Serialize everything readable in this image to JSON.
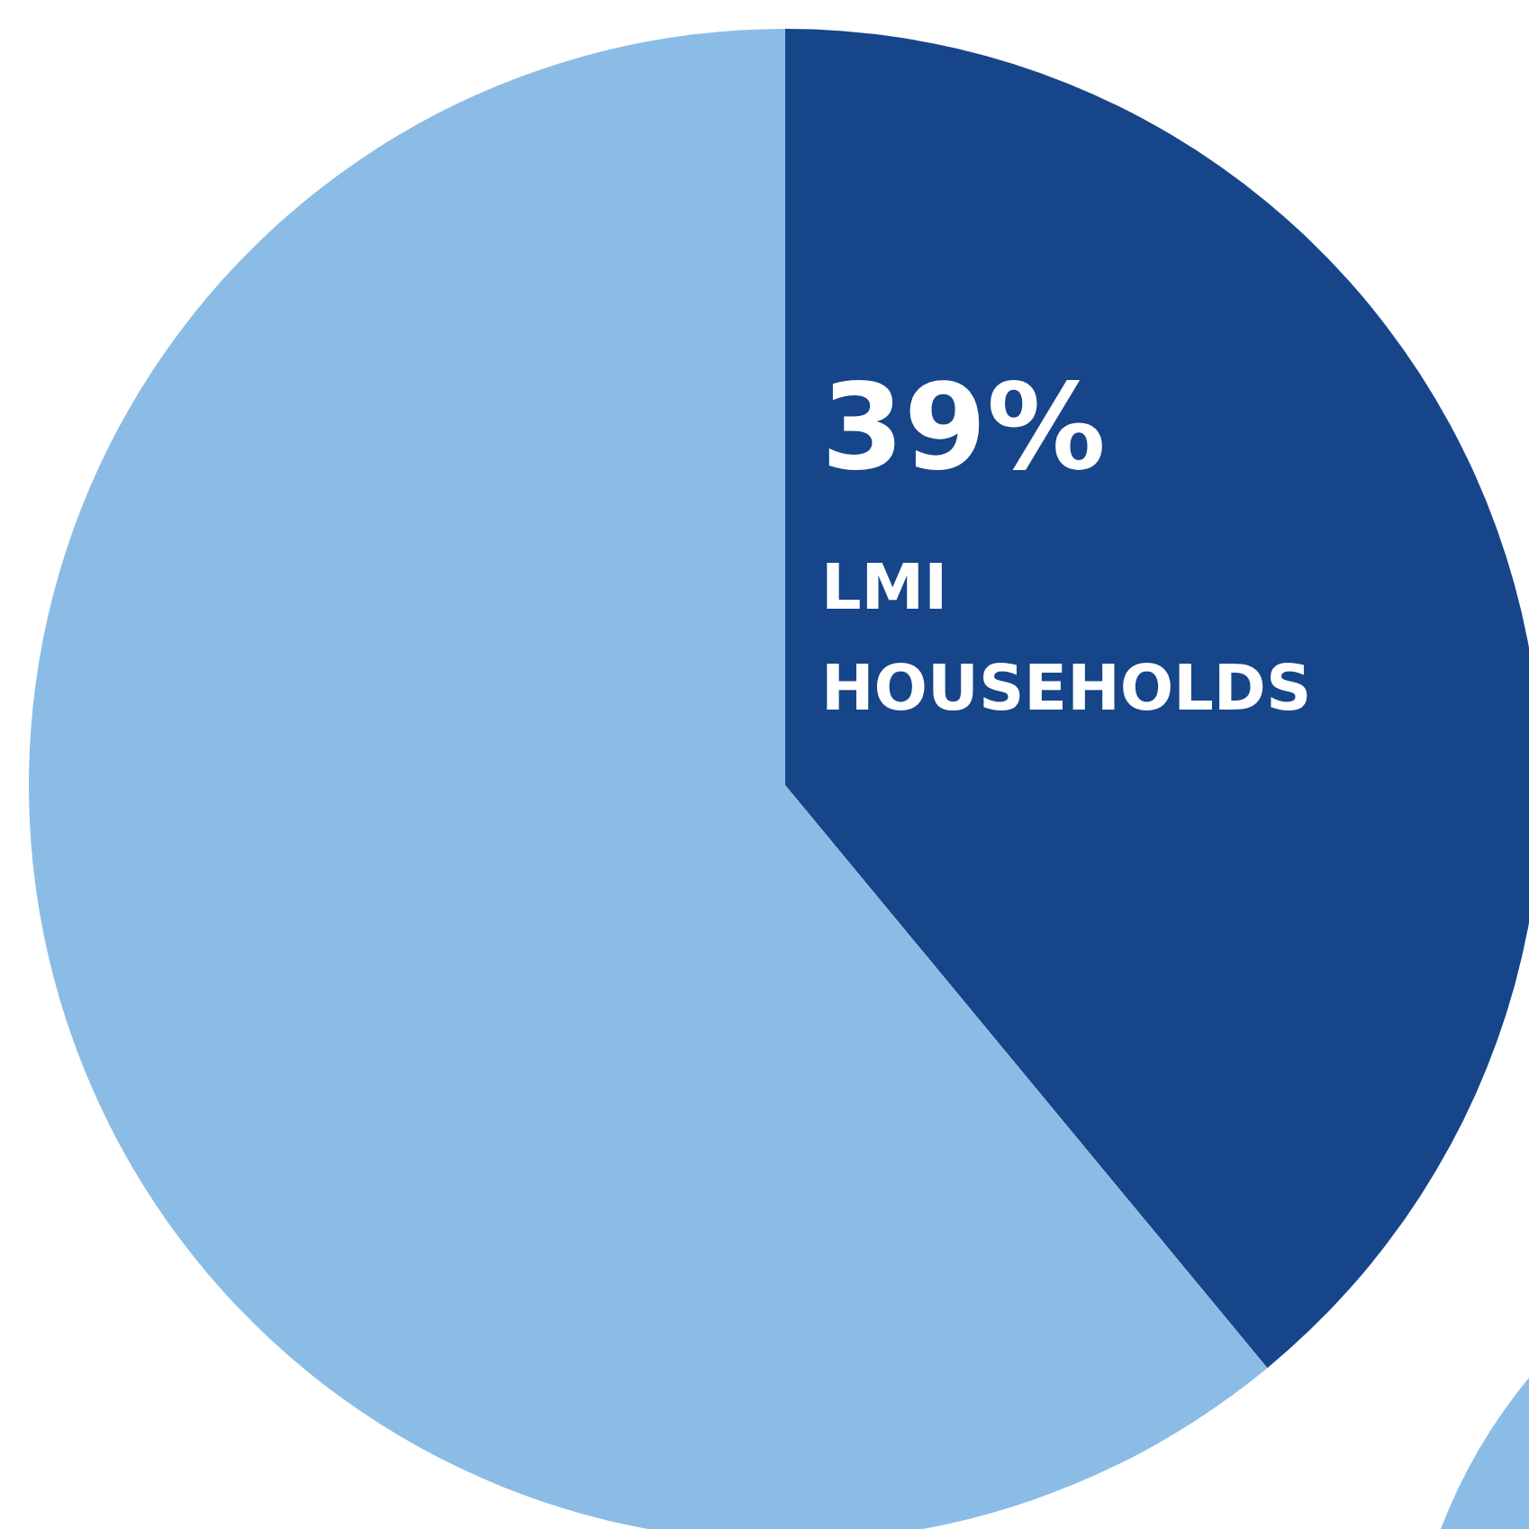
{
  "chart_data": {
    "type": "pie",
    "categories": [
      "LMI HOUSEHOLDS",
      null
    ],
    "values": [
      39,
      61
    ],
    "colors": [
      "#17458a",
      "#8bbce6"
    ],
    "value_labels": [
      "39%",
      null
    ]
  }
}
